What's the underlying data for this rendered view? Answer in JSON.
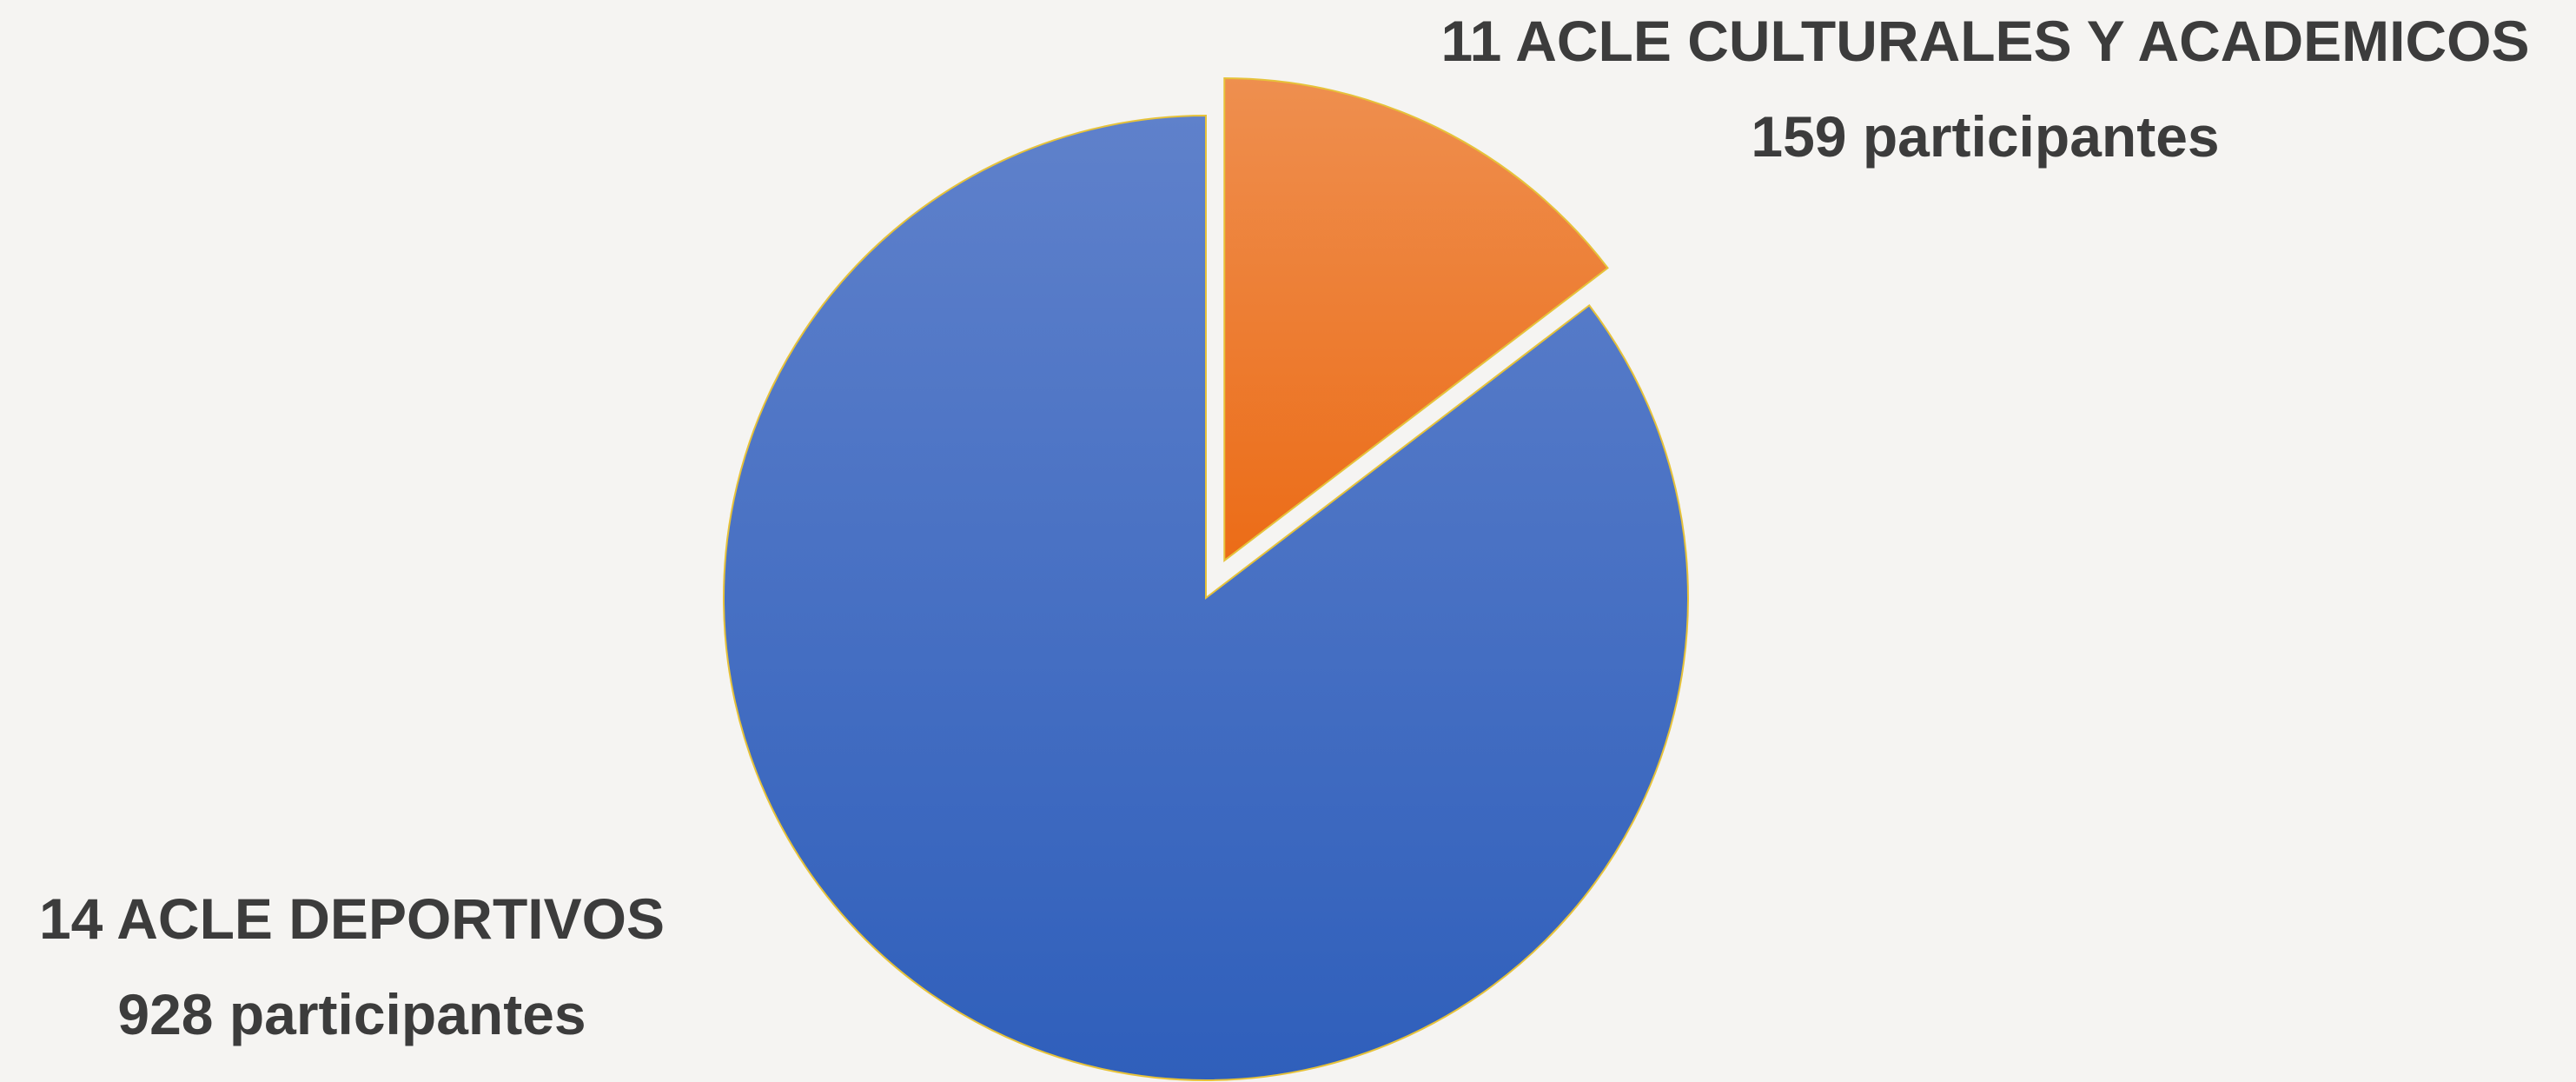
{
  "chart_data": {
    "type": "pie",
    "title": "",
    "slices": [
      {
        "name": "14 ACLE DEPORTIVOS",
        "value": 928,
        "value_label": "928 participantes",
        "color_top": "#5f81cb",
        "color_bottom": "#2f5fbb",
        "exploded": false
      },
      {
        "name": "11 ACLE CULTURALES Y ACADEMICOS",
        "value": 159,
        "value_label": "159 participantes",
        "color_top": "#ee8f4f",
        "color_bottom": "#ec6c17",
        "exploded": true
      }
    ],
    "start_angle": "12 o'clock",
    "direction": "counter-clockwise from top for first slice",
    "legend": "none",
    "data_labels": "outside, two lines (category name and value)"
  },
  "colors": {
    "background": "#f5f4f2",
    "label_text": "#3c3c3c",
    "slice_border": "#e6c23a"
  }
}
